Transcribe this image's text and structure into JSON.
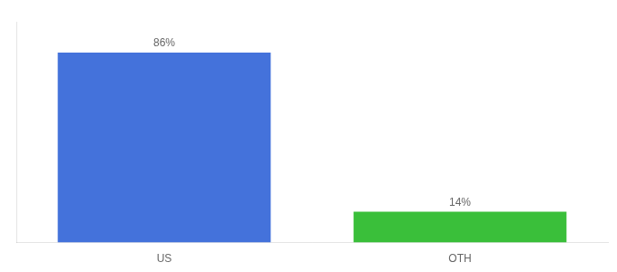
{
  "chart_data": {
    "type": "bar",
    "categories": [
      "US",
      "OTH"
    ],
    "values": [
      86,
      14
    ],
    "value_labels": [
      "86%",
      "14%"
    ],
    "colors": [
      "#4472db",
      "#3abf3a"
    ],
    "ylim": [
      0,
      100
    ],
    "grid": false,
    "data_labels": true,
    "tick_labels": "x"
  }
}
